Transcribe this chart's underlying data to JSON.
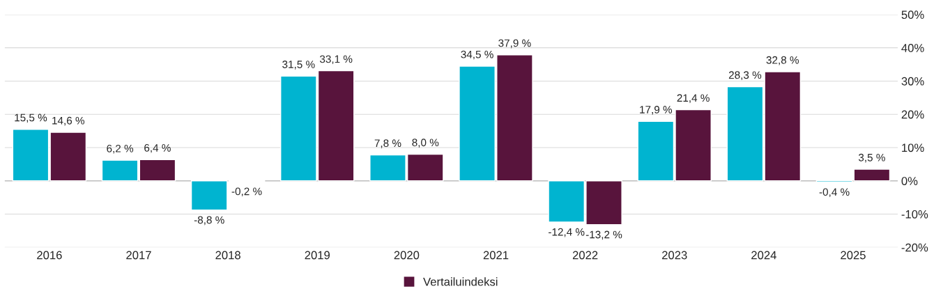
{
  "chart_data": {
    "type": "bar",
    "categories": [
      "2016",
      "2017",
      "2018",
      "2019",
      "2020",
      "2021",
      "2022",
      "2023",
      "2024",
      "2025"
    ],
    "series": [
      {
        "color": "#00b4d0",
        "values": [
          15.5,
          6.2,
          -8.8,
          31.5,
          7.8,
          34.5,
          -12.4,
          17.9,
          28.3,
          -0.4
        ],
        "value_labels": [
          "15,5 %",
          "6,2 %",
          "-8,8 %",
          "31,5 %",
          "7,8 %",
          "34,5 %",
          "-12,4 %",
          "17,9 %",
          "28,3 %",
          "-0,4 %"
        ]
      },
      {
        "name": "Vertailuindeksi",
        "color": "#58143c",
        "values": [
          14.6,
          6.4,
          -0.2,
          33.1,
          8.0,
          37.9,
          -13.2,
          21.4,
          32.8,
          3.5
        ],
        "value_labels": [
          "14,6 %",
          "6,4 %",
          "-0,2 %",
          "33,1 %",
          "8,0 %",
          "37,9 %",
          "-13,2 %",
          "21,4 %",
          "32,8 %",
          "3,5 %"
        ]
      }
    ],
    "ylim": [
      -20,
      50
    ],
    "yticks": [
      {
        "value": -20,
        "label": "-20%"
      },
      {
        "value": -10,
        "label": "-10%"
      },
      {
        "value": 0,
        "label": "0%"
      },
      {
        "value": 10,
        "label": "10%"
      },
      {
        "value": 20,
        "label": "20%"
      },
      {
        "value": 30,
        "label": "30%"
      },
      {
        "value": 40,
        "label": "40%"
      },
      {
        "value": 50,
        "label": "50%"
      }
    ],
    "grid": "y",
    "legend": "bottom"
  }
}
